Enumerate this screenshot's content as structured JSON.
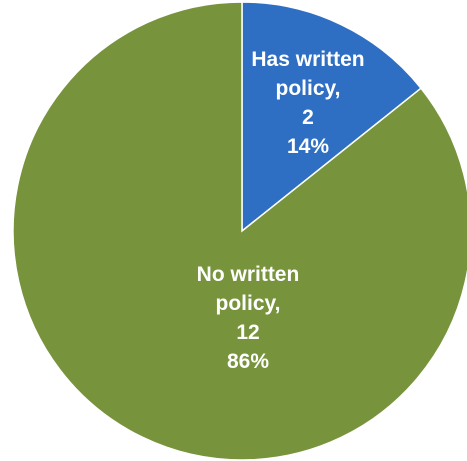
{
  "chart_data": {
    "type": "pie",
    "start_angle_deg": 0,
    "direction": "clockwise",
    "slices": [
      {
        "name_line1": "Has written",
        "name_line2": "policy,",
        "value": 2,
        "value_label": "2",
        "percent": 14,
        "percent_label": "14%",
        "color": "#2e6fc4"
      },
      {
        "name_line1": "No written",
        "name_line2": "policy,",
        "value": 12,
        "value_label": "12",
        "percent": 86,
        "percent_label": "86%",
        "color": "#77933c"
      }
    ],
    "legend": "none"
  }
}
